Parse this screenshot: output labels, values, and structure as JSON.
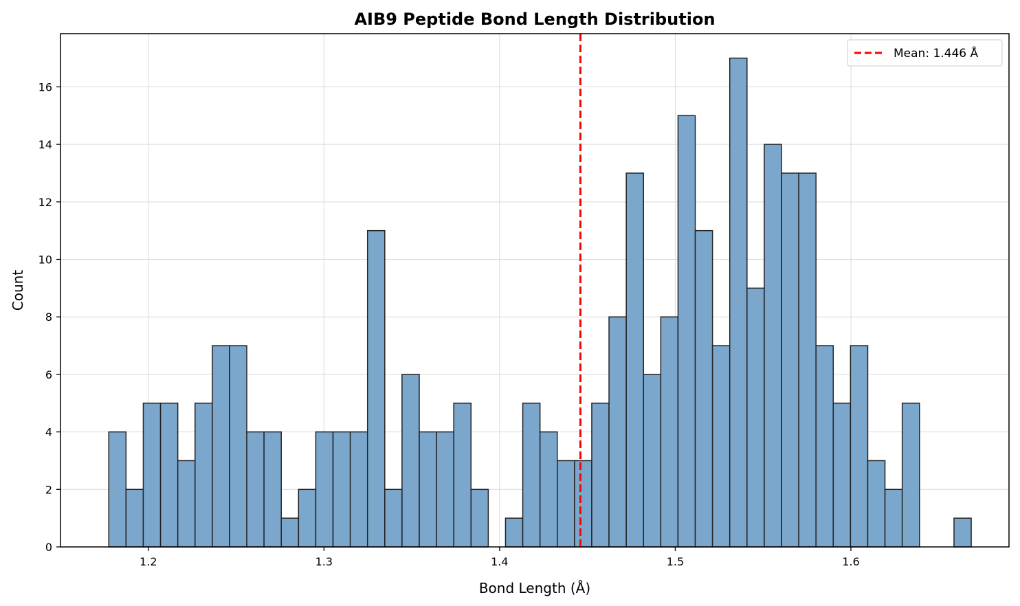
{
  "chart_data": {
    "type": "bar",
    "title": "AIB9 Peptide Bond Length Distribution",
    "xlabel": "Bond Length (Å)",
    "ylabel": "Count",
    "xlim": [
      1.15,
      1.69
    ],
    "ylim": [
      0,
      17.85
    ],
    "x_ticks": [
      1.2,
      1.3,
      1.4,
      1.5,
      1.6
    ],
    "x_tick_labels": [
      "1.2",
      "1.3",
      "1.4",
      "1.5",
      "1.6"
    ],
    "y_ticks": [
      0,
      2,
      4,
      6,
      8,
      10,
      12,
      14,
      16
    ],
    "y_tick_labels": [
      "0",
      "2",
      "4",
      "6",
      "8",
      "10",
      "12",
      "14",
      "16"
    ],
    "bins": {
      "start": 1.1775,
      "width": 0.00982,
      "counts": [
        4,
        2,
        5,
        5,
        3,
        5,
        7,
        7,
        4,
        4,
        1,
        2,
        4,
        4,
        4,
        11,
        2,
        6,
        4,
        4,
        5,
        2,
        0,
        1,
        5,
        4,
        3,
        3,
        5,
        8,
        13,
        6,
        8,
        15,
        11,
        7,
        17,
        9,
        14,
        13,
        13,
        7,
        5,
        7,
        3,
        2,
        5,
        0,
        0,
        1
      ]
    },
    "mean_line": {
      "x": 1.446,
      "label": "Mean: 1.446 Å",
      "color": "#ff0000"
    },
    "bar_color": "#7ba7cc",
    "bar_edge_color": "#222222",
    "grid": true,
    "legend_position": "upper right"
  }
}
